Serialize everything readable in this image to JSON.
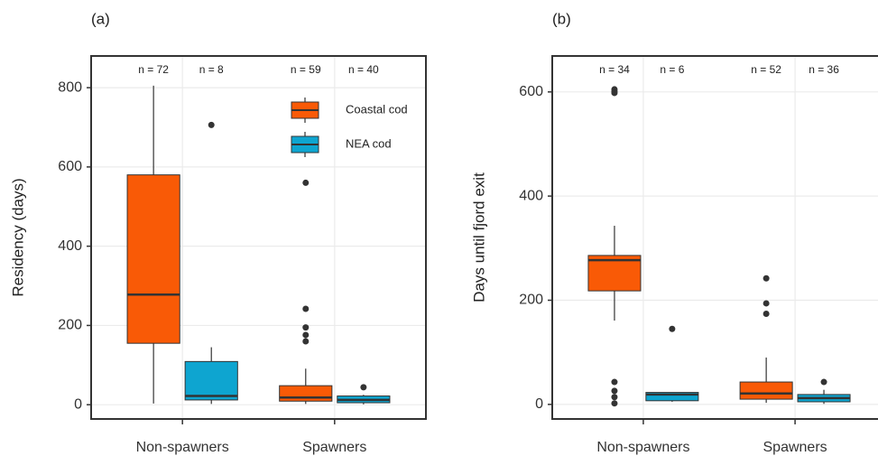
{
  "chart_data": [
    {
      "type": "box",
      "panel_label": "(a)",
      "y_label": "Residency (days)",
      "categories": [
        "Non-spawners",
        "Spawners"
      ],
      "series": [
        {
          "name": "Coastal cod",
          "color": "#f95a06",
          "values": [
            {
              "min": 3,
              "q1": 155,
              "median": 278,
              "q3": 580,
              "max": 805,
              "outliers": []
            },
            {
              "min": 2,
              "q1": 9,
              "median": 18,
              "q3": 48,
              "max": 91,
              "outliers": [
                560,
                242,
                195,
                176,
                160
              ]
            }
          ]
        },
        {
          "name": "NEA cod",
          "color": "#0ea5d0",
          "values": [
            {
              "min": 2,
              "q1": 12,
              "median": 22,
              "q3": 109,
              "max": 145,
              "outliers": [
                706
              ]
            },
            {
              "min": 1,
              "q1": 5,
              "median": 12,
              "q3": 22,
              "max": 25,
              "outliers": [
                44
              ]
            }
          ]
        }
      ],
      "annotations": [
        "n = 72",
        "n = 8",
        "n = 59",
        "n = 40"
      ],
      "ylim": [
        -36,
        880
      ],
      "yticks": [
        0,
        200,
        400,
        600,
        800
      ],
      "grid": true,
      "legend": "upper right"
    },
    {
      "type": "box",
      "panel_label": "(b)",
      "y_label": "Days until fjord exit",
      "categories": [
        "Non-spawners",
        "Spawners"
      ],
      "series": [
        {
          "name": "Coastal cod",
          "color": "#f95a06",
          "values": [
            {
              "min": 161,
              "q1": 218,
              "median": 277,
              "q3": 286,
              "max": 343,
              "outliers": [
                605,
                601,
                598,
                43,
                26,
                14,
                2
              ]
            },
            {
              "min": 3,
              "q1": 10,
              "median": 21,
              "q3": 43,
              "max": 90,
              "outliers": [
                242,
                194,
                174
              ]
            }
          ]
        },
        {
          "name": "NEA cod",
          "color": "#0ea5d0",
          "values": [
            {
              "min": 5,
              "q1": 7,
              "median": 19,
              "q3": 23,
              "max": 23,
              "outliers": [
                145
              ]
            },
            {
              "min": 1,
              "q1": 5,
              "median": 12,
              "q3": 19,
              "max": 28,
              "outliers": [
                43
              ]
            }
          ]
        }
      ],
      "annotations": [
        "n = 34",
        "n = 6",
        "n = 52",
        "n = 36"
      ],
      "ylim": [
        -28,
        669
      ],
      "yticks": [
        0,
        200,
        400,
        600
      ],
      "grid": true,
      "legend": "none"
    }
  ]
}
